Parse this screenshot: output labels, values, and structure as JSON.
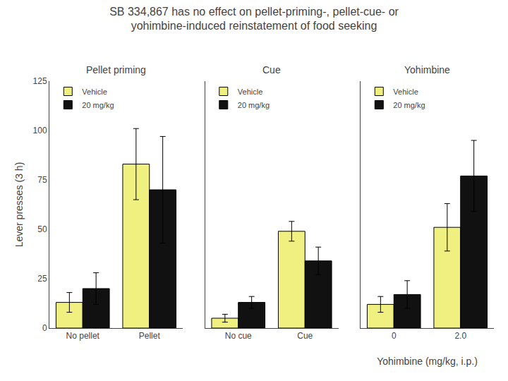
{
  "title": "SB 334,867 has no effect on pellet-priming-, pellet-cue- or\nyohimbine-induced reinstatement of food seeking",
  "chart_data": [
    {
      "type": "bar",
      "title": "Pellet priming",
      "ylabel": "Lever presses (3 h)",
      "categories": [
        "No pellet",
        "Pellet"
      ],
      "series": [
        {
          "name": "Vehicle",
          "color": "#f0f080",
          "values": [
            13,
            83
          ],
          "errors": [
            5,
            18
          ]
        },
        {
          "name": "20 mg/kg",
          "color": "#111111",
          "values": [
            20,
            70
          ],
          "errors": [
            8,
            27
          ]
        }
      ],
      "ylim": [
        0,
        125
      ],
      "yticks": [
        0,
        25,
        50,
        75,
        100,
        125
      ],
      "grid": false,
      "legend": "upper left"
    },
    {
      "type": "bar",
      "title": "Cue",
      "categories": [
        "No cue",
        "Cue"
      ],
      "series": [
        {
          "name": "Vehicle",
          "color": "#f0f080",
          "values": [
            5,
            49
          ],
          "errors": [
            2,
            5
          ]
        },
        {
          "name": "20 mg/kg",
          "color": "#111111",
          "values": [
            13,
            34
          ],
          "errors": [
            3,
            7
          ]
        }
      ],
      "ylim": [
        0,
        125
      ],
      "yticks": [
        0,
        25,
        50,
        75,
        100,
        125
      ],
      "grid": false,
      "legend": "upper left",
      "tick_labels": "x"
    },
    {
      "type": "bar",
      "title": "Yohimbine",
      "xlabel": "Yohimbine (mg/kg, i.p.)",
      "categories": [
        "0",
        "2.0"
      ],
      "series": [
        {
          "name": "Vehicle",
          "color": "#f0f080",
          "values": [
            12,
            51
          ],
          "errors": [
            4,
            12
          ]
        },
        {
          "name": "20 mg/kg",
          "color": "#111111",
          "values": [
            17,
            77
          ],
          "errors": [
            7,
            18
          ]
        }
      ],
      "ylim": [
        0,
        125
      ],
      "yticks": [
        0,
        25,
        50,
        75,
        100,
        125
      ],
      "grid": false,
      "legend": "upper left",
      "tick_labels": "x"
    }
  ]
}
